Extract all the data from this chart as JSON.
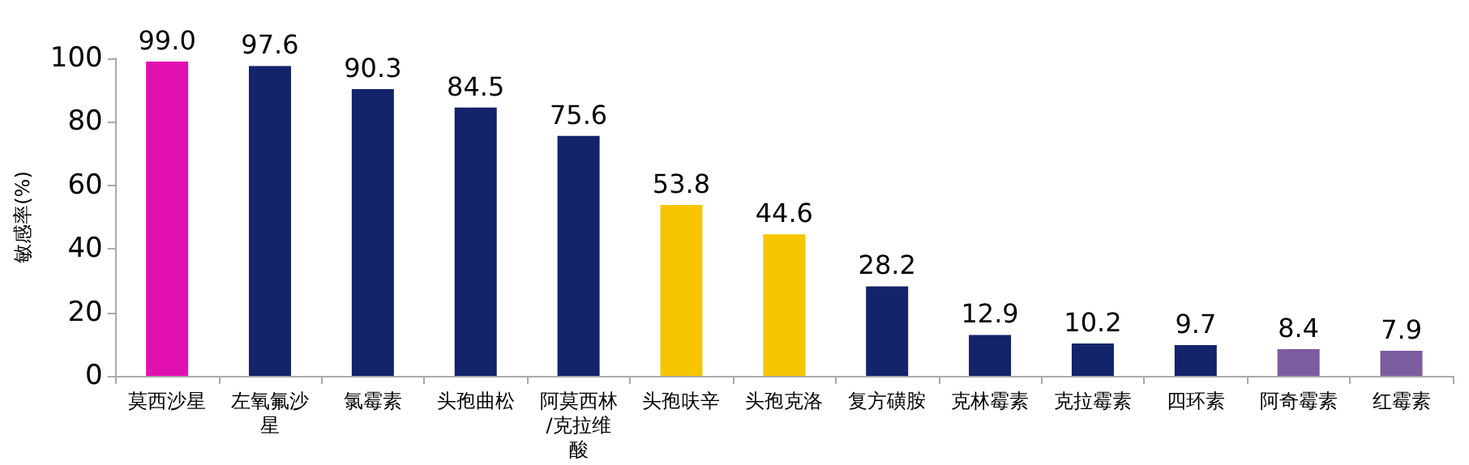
{
  "chart_data": {
    "type": "bar",
    "ylabel": "敏感率(%)",
    "categories": [
      "莫西沙星",
      "左氧氟沙星",
      "氯霉素",
      "头孢曲松",
      "阿莫西林/克拉维酸",
      "头孢呋辛",
      "头孢克洛",
      "复方磺胺",
      "克林霉素",
      "克拉霉素",
      "四环素",
      "阿奇霉素",
      "红霉素"
    ],
    "values": [
      99.0,
      97.6,
      90.3,
      84.5,
      75.6,
      53.8,
      44.6,
      28.2,
      12.9,
      10.2,
      9.7,
      8.4,
      7.9
    ],
    "value_labels": [
      "99.0",
      "97.6",
      "90.3",
      "84.5",
      "75.6",
      "53.8",
      "44.6",
      "28.2",
      "12.9",
      "10.2",
      "9.7",
      "8.4",
      "7.9"
    ],
    "colors": [
      "#e010b0",
      "#13246a",
      "#13246a",
      "#13246a",
      "#13246a",
      "#f7c500",
      "#f7c500",
      "#13246a",
      "#13246a",
      "#13246a",
      "#13246a",
      "#7b5c9e",
      "#7b5c9e"
    ],
    "ylim": [
      0,
      100
    ],
    "yticks": [
      0,
      20,
      40,
      60,
      80,
      100
    ],
    "grid": false
  }
}
